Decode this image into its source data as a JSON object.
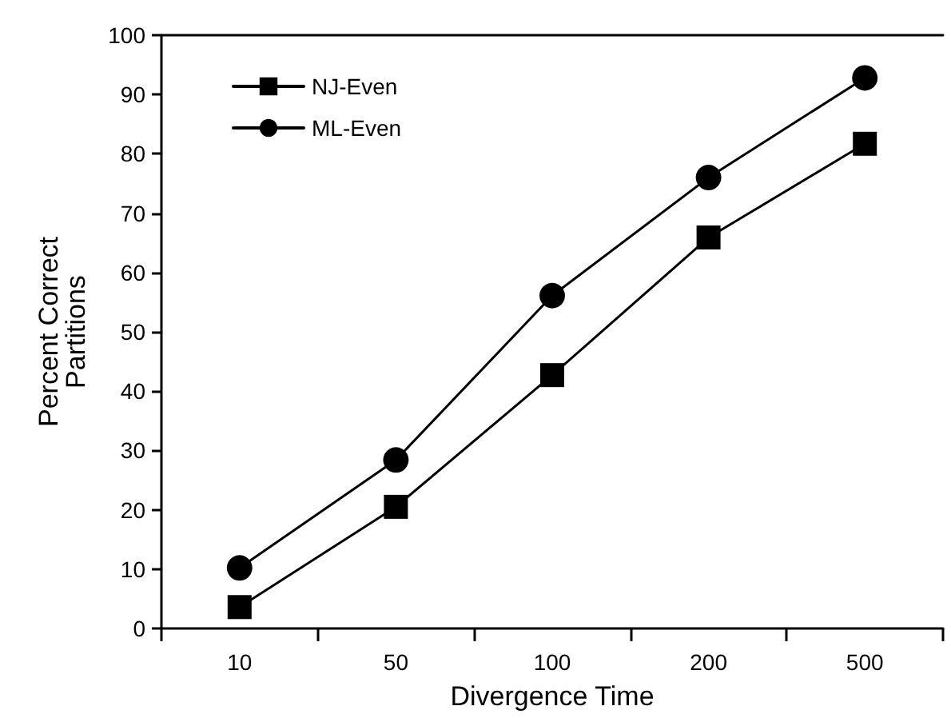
{
  "chart_data": {
    "type": "line",
    "xlabel": "Divergence Time",
    "ylabel": "Percent Correct\nPartitions",
    "categories": [
      "10",
      "50",
      "100",
      "200",
      "500"
    ],
    "series": [
      {
        "name": "NJ-Even",
        "color": "#000000",
        "marker": "square",
        "values": [
          3.6,
          20.5,
          42.7,
          65.9,
          81.7
        ]
      },
      {
        "name": "ML-Even",
        "color": "#000000",
        "marker": "circle",
        "values": [
          10.2,
          28.4,
          56.1,
          76,
          92.8
        ]
      }
    ],
    "ylim": [
      0,
      100
    ],
    "yticks": [
      0,
      10,
      20,
      30,
      40,
      50,
      60,
      70,
      80,
      90,
      100
    ],
    "grid": false,
    "legend": "top left",
    "line_style": "solid"
  }
}
